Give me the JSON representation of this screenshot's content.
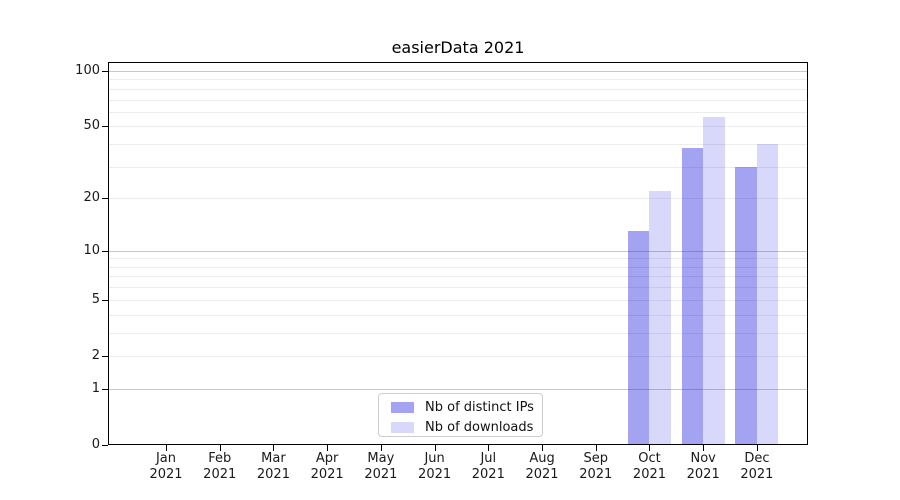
{
  "title": "easierData 2021",
  "chart_data": {
    "type": "bar",
    "title": "easierData 2021",
    "xlabel": "",
    "ylabel": "",
    "yscale": "log1p",
    "ylim": [
      0,
      113
    ],
    "yticks": [
      100,
      50,
      20,
      10,
      5,
      2,
      1,
      0
    ],
    "ytick_labels": [
      "100",
      "50",
      "20",
      "10",
      "5",
      "2",
      "1",
      "0"
    ],
    "gridlines": {
      "minor": [
        2,
        3,
        4,
        5,
        6,
        7,
        8,
        9,
        20,
        30,
        40,
        50,
        60,
        70,
        80,
        90
      ],
      "major": [
        1,
        10,
        100
      ]
    },
    "grid": "horizontal",
    "legend_position": "lower center inside plot",
    "categories": [
      {
        "month": "Jan",
        "year": "2021"
      },
      {
        "month": "Feb",
        "year": "2021"
      },
      {
        "month": "Mar",
        "year": "2021"
      },
      {
        "month": "Apr",
        "year": "2021"
      },
      {
        "month": "May",
        "year": "2021"
      },
      {
        "month": "Jun",
        "year": "2021"
      },
      {
        "month": "Jul",
        "year": "2021"
      },
      {
        "month": "Aug",
        "year": "2021"
      },
      {
        "month": "Sep",
        "year": "2021"
      },
      {
        "month": "Oct",
        "year": "2021"
      },
      {
        "month": "Nov",
        "year": "2021"
      },
      {
        "month": "Dec",
        "year": "2021"
      }
    ],
    "series": [
      {
        "name": "Nb of distinct IPs",
        "values": [
          null,
          null,
          null,
          null,
          null,
          null,
          null,
          null,
          null,
          13,
          38,
          30
        ],
        "fill": "rgba(25,25,223,0.40)",
        "hex_on_white": "#a3a3f2"
      },
      {
        "name": "Nb of downloads",
        "values": [
          null,
          null,
          null,
          null,
          null,
          null,
          null,
          null,
          null,
          22,
          56,
          40
        ],
        "fill": "rgba(25,25,223,0.17)",
        "hex_on_white": "#d8d8f9"
      }
    ]
  }
}
